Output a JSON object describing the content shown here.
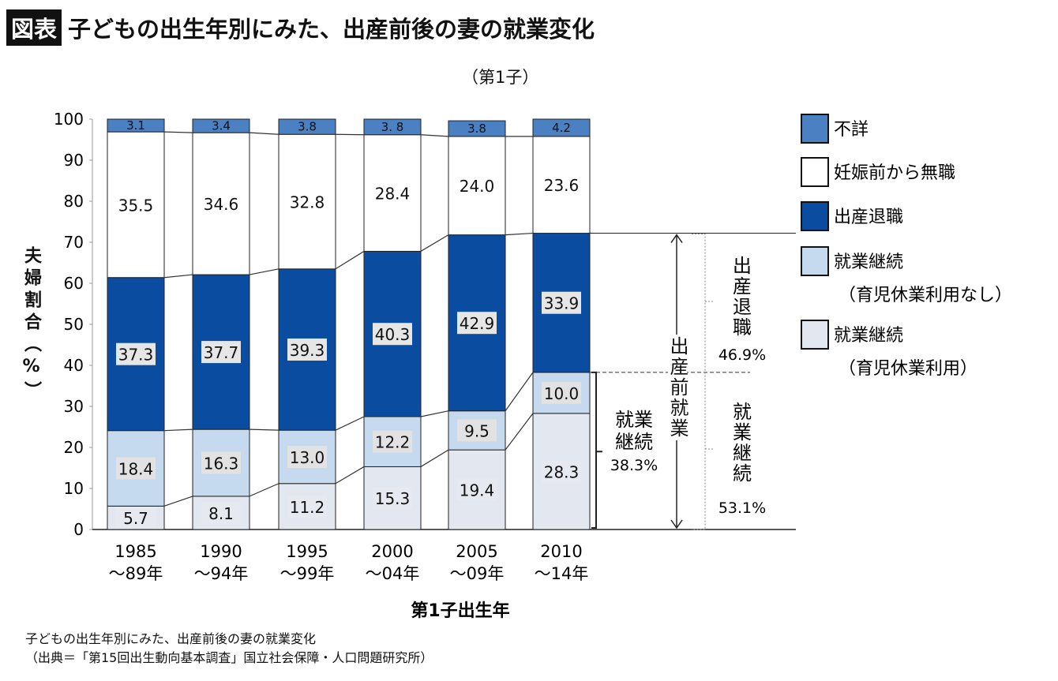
{
  "title": {
    "badge": "図表",
    "text": "子どもの出生年別にみた、出産前後の妻の就業変化",
    "subtitle": "（第1子）"
  },
  "footer": {
    "line1": "子どもの出生年別にみた、出産前後の妻の就業変化",
    "line2": "（出典＝「第15回出生動向基本調査」国立社会保障・人口問題研究所）"
  },
  "chart_data": {
    "type": "bar",
    "stacked": true,
    "categories": [
      [
        "1985",
        "～89年"
      ],
      [
        "1990",
        "～94年"
      ],
      [
        "1995",
        "～99年"
      ],
      [
        "2000",
        "～04年"
      ],
      [
        "2005",
        "～09年"
      ],
      [
        "2010",
        "～14年"
      ]
    ],
    "xlabel": "第1子出生年",
    "ylabel": "夫婦割合（%）",
    "ylim": [
      0,
      100
    ],
    "yticks": [
      0,
      10,
      20,
      30,
      40,
      50,
      60,
      70,
      80,
      90,
      100
    ],
    "legend_position": "right",
    "series": [
      {
        "name": "就業継続（育児休業利用）",
        "color": "#e3e7ef",
        "values": [
          5.7,
          8.1,
          11.2,
          15.3,
          19.4,
          28.3
        ]
      },
      {
        "name": "就業継続（育児休業利用なし）",
        "color": "#c5d9ef",
        "values": [
          18.4,
          16.3,
          13.0,
          12.2,
          9.5,
          10.0
        ]
      },
      {
        "name": "出産退職",
        "color": "#0a4da0",
        "values": [
          37.3,
          37.7,
          39.3,
          40.3,
          42.9,
          33.9
        ]
      },
      {
        "name": "妊娠前から無職",
        "color": "#ffffff",
        "values": [
          35.5,
          34.6,
          32.8,
          28.4,
          24.0,
          23.6
        ]
      },
      {
        "name": "不詳",
        "color": "#4b80c3",
        "values": [
          3.1,
          3.4,
          3.8,
          3.8,
          3.8,
          4.2
        ]
      }
    ],
    "value_labels": [
      [
        "5.7",
        "8.1",
        "11.2",
        "15.3",
        "19.4",
        "28.3"
      ],
      [
        "18.4",
        "16.3",
        "13.0",
        "12.2",
        "9.5",
        "10.0"
      ],
      [
        "37.3",
        "37.7",
        "39.3",
        "40.3",
        "42.9",
        "33.9"
      ],
      [
        "35.5",
        "34.6",
        "32.8",
        "28.4",
        "24.0",
        "23.6"
      ],
      [
        "3.1",
        "3.4",
        "3.8",
        "3. 8",
        "3.8",
        "4.2"
      ]
    ],
    "legend_labels": [
      [
        "不詳"
      ],
      [
        "妊娠前から無職"
      ],
      [
        "出産退職"
      ],
      [
        "就業継続",
        "（育児休業利用なし）"
      ],
      [
        "就業継続",
        "（育児休業利用）"
      ]
    ],
    "annotations": {
      "pre_birth_employment": "出産前就業",
      "continued": [
        "就業",
        "継続",
        "38.3%"
      ],
      "quit": [
        "出",
        "産",
        "退",
        "職",
        "46.9%"
      ],
      "continued_right": [
        "就",
        "業",
        "継",
        "続",
        "53.1%"
      ]
    }
  }
}
